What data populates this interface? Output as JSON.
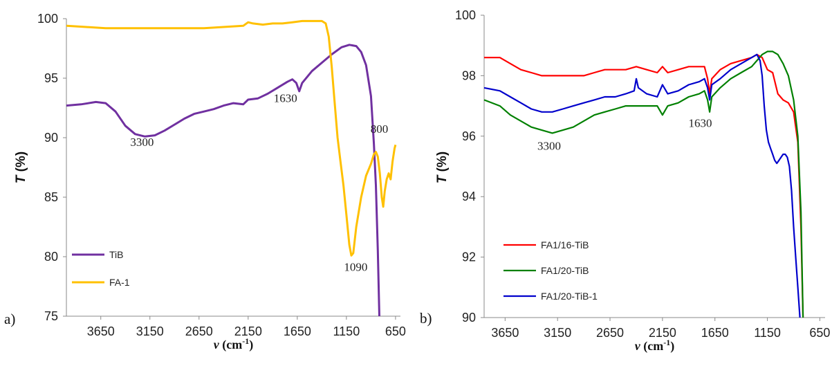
{
  "chart_data": [
    {
      "type": "line",
      "panel_label": "a)",
      "xlabel": "ν (cm⁻¹)",
      "xlabel_var": "ν",
      "xlabel_unit": "(cm",
      "xlabel_sup": "-1",
      "xlabel_close": ")",
      "ylabel_var": "T",
      "ylabel_unit": "(%)",
      "xlim": [
        4000,
        600
      ],
      "ylim": [
        75,
        100
      ],
      "xticks": [
        3650,
        3150,
        2650,
        2150,
        1650,
        1150,
        650
      ],
      "yticks": [
        75,
        80,
        85,
        90,
        95,
        100
      ],
      "grid": false,
      "legend_position": "bottom-left",
      "series": [
        {
          "name": "TiB",
          "color": "#7030A0",
          "points": [
            [
              4000,
              92.7
            ],
            [
              3850,
              92.8
            ],
            [
              3700,
              93.0
            ],
            [
              3600,
              92.9
            ],
            [
              3500,
              92.2
            ],
            [
              3400,
              91.0
            ],
            [
              3300,
              90.3
            ],
            [
              3200,
              90.1
            ],
            [
              3100,
              90.2
            ],
            [
              3000,
              90.6
            ],
            [
              2900,
              91.1
            ],
            [
              2800,
              91.6
            ],
            [
              2700,
              92.0
            ],
            [
              2600,
              92.2
            ],
            [
              2500,
              92.4
            ],
            [
              2400,
              92.7
            ],
            [
              2300,
              92.9
            ],
            [
              2200,
              92.8
            ],
            [
              2150,
              93.2
            ],
            [
              2050,
              93.3
            ],
            [
              1950,
              93.7
            ],
            [
              1850,
              94.2
            ],
            [
              1750,
              94.7
            ],
            [
              1700,
              94.9
            ],
            [
              1660,
              94.6
            ],
            [
              1630,
              93.9
            ],
            [
              1600,
              94.6
            ],
            [
              1500,
              95.6
            ],
            [
              1400,
              96.3
            ],
            [
              1300,
              97.0
            ],
            [
              1200,
              97.6
            ],
            [
              1120,
              97.8
            ],
            [
              1050,
              97.7
            ],
            [
              1000,
              97.2
            ],
            [
              950,
              96.1
            ],
            [
              900,
              93.5
            ],
            [
              870,
              89.5
            ],
            [
              850,
              86.0
            ],
            [
              830,
              80.5
            ],
            [
              815,
              75.0
            ]
          ]
        },
        {
          "name": "FA-1",
          "color": "#FFC000",
          "points": [
            [
              4000,
              99.4
            ],
            [
              3800,
              99.3
            ],
            [
              3600,
              99.2
            ],
            [
              3400,
              99.2
            ],
            [
              3200,
              99.2
            ],
            [
              3000,
              99.2
            ],
            [
              2800,
              99.2
            ],
            [
              2600,
              99.2
            ],
            [
              2400,
              99.3
            ],
            [
              2200,
              99.4
            ],
            [
              2150,
              99.7
            ],
            [
              2100,
              99.6
            ],
            [
              2000,
              99.5
            ],
            [
              1900,
              99.6
            ],
            [
              1800,
              99.6
            ],
            [
              1700,
              99.7
            ],
            [
              1600,
              99.8
            ],
            [
              1500,
              99.8
            ],
            [
              1400,
              99.8
            ],
            [
              1360,
              99.6
            ],
            [
              1330,
              98.5
            ],
            [
              1300,
              96.0
            ],
            [
              1270,
              93.0
            ],
            [
              1240,
              90.0
            ],
            [
              1210,
              88.0
            ],
            [
              1180,
              86.0
            ],
            [
              1150,
              83.5
            ],
            [
              1120,
              81.0
            ],
            [
              1100,
              80.1
            ],
            [
              1080,
              80.3
            ],
            [
              1050,
              82.5
            ],
            [
              1000,
              85.0
            ],
            [
              950,
              86.8
            ],
            [
              900,
              87.8
            ],
            [
              870,
              88.6
            ],
            [
              850,
              88.8
            ],
            [
              830,
              88.4
            ],
            [
              810,
              87.0
            ],
            [
              790,
              85.0
            ],
            [
              775,
              84.2
            ],
            [
              760,
              85.5
            ],
            [
              740,
              86.5
            ],
            [
              720,
              87.0
            ],
            [
              700,
              86.5
            ],
            [
              680,
              88.0
            ],
            [
              660,
              89.1
            ],
            [
              650,
              89.4
            ]
          ]
        }
      ],
      "annotations": [
        {
          "text": "3300",
          "x": 3230,
          "y": 89.3
        },
        {
          "text": "1630",
          "x": 1770,
          "y": 93.0
        },
        {
          "text": "1090",
          "x": 1055,
          "y": 78.8
        },
        {
          "text": "800",
          "x": 815,
          "y": 90.4
        }
      ]
    },
    {
      "type": "line",
      "panel_label": "b)",
      "xlabel": "ν (cm⁻¹)",
      "xlabel_var": "ν",
      "xlabel_unit": "(cm",
      "xlabel_sup": "-1",
      "xlabel_close": ")",
      "ylabel_var": "T",
      "ylabel_unit": "(%)",
      "xlim": [
        3850,
        600
      ],
      "ylim": [
        90,
        100
      ],
      "xticks": [
        3650,
        3150,
        2650,
        2150,
        1650,
        1150,
        650
      ],
      "yticks": [
        90,
        92,
        94,
        96,
        98,
        100
      ],
      "grid": false,
      "legend_position": "bottom-left",
      "series": [
        {
          "name": "FA1/16-TiB",
          "color": "#FF0000",
          "points": [
            [
              3850,
              98.6
            ],
            [
              3700,
              98.6
            ],
            [
              3600,
              98.4
            ],
            [
              3500,
              98.2
            ],
            [
              3400,
              98.1
            ],
            [
              3300,
              98.0
            ],
            [
              3200,
              98.0
            ],
            [
              3100,
              98.0
            ],
            [
              3000,
              98.0
            ],
            [
              2900,
              98.0
            ],
            [
              2800,
              98.1
            ],
            [
              2700,
              98.2
            ],
            [
              2600,
              98.2
            ],
            [
              2500,
              98.2
            ],
            [
              2400,
              98.3
            ],
            [
              2300,
              98.2
            ],
            [
              2200,
              98.1
            ],
            [
              2150,
              98.3
            ],
            [
              2100,
              98.1
            ],
            [
              2000,
              98.2
            ],
            [
              1900,
              98.3
            ],
            [
              1800,
              98.3
            ],
            [
              1750,
              98.3
            ],
            [
              1720,
              97.9
            ],
            [
              1700,
              97.4
            ],
            [
              1680,
              97.9
            ],
            [
              1600,
              98.2
            ],
            [
              1500,
              98.4
            ],
            [
              1400,
              98.5
            ],
            [
              1300,
              98.6
            ],
            [
              1250,
              98.7
            ],
            [
              1200,
              98.6
            ],
            [
              1150,
              98.2
            ],
            [
              1100,
              98.1
            ],
            [
              1050,
              97.4
            ],
            [
              1000,
              97.2
            ],
            [
              950,
              97.1
            ],
            [
              900,
              96.8
            ],
            [
              860,
              95.8
            ],
            [
              830,
              93.0
            ],
            [
              810,
              90.0
            ]
          ]
        },
        {
          "name": "FA1/20-TiB",
          "color": "#008000",
          "points": [
            [
              3850,
              97.2
            ],
            [
              3700,
              97.0
            ],
            [
              3600,
              96.7
            ],
            [
              3500,
              96.5
            ],
            [
              3400,
              96.3
            ],
            [
              3300,
              96.2
            ],
            [
              3200,
              96.1
            ],
            [
              3100,
              96.2
            ],
            [
              3000,
              96.3
            ],
            [
              2900,
              96.5
            ],
            [
              2800,
              96.7
            ],
            [
              2700,
              96.8
            ],
            [
              2600,
              96.9
            ],
            [
              2500,
              97.0
            ],
            [
              2400,
              97.0
            ],
            [
              2300,
              97.0
            ],
            [
              2200,
              97.0
            ],
            [
              2150,
              96.7
            ],
            [
              2100,
              97.0
            ],
            [
              2000,
              97.1
            ],
            [
              1900,
              97.3
            ],
            [
              1800,
              97.4
            ],
            [
              1750,
              97.5
            ],
            [
              1720,
              97.2
            ],
            [
              1700,
              96.8
            ],
            [
              1680,
              97.3
            ],
            [
              1600,
              97.6
            ],
            [
              1500,
              97.9
            ],
            [
              1400,
              98.1
            ],
            [
              1300,
              98.3
            ],
            [
              1250,
              98.5
            ],
            [
              1200,
              98.7
            ],
            [
              1150,
              98.8
            ],
            [
              1100,
              98.8
            ],
            [
              1050,
              98.7
            ],
            [
              1000,
              98.4
            ],
            [
              950,
              98.0
            ],
            [
              900,
              97.2
            ],
            [
              860,
              96.0
            ],
            [
              830,
              93.5
            ],
            [
              810,
              90.0
            ]
          ]
        },
        {
          "name": "FA1/20-TiB-1",
          "color": "#0000CC",
          "points": [
            [
              3850,
              97.6
            ],
            [
              3700,
              97.5
            ],
            [
              3600,
              97.3
            ],
            [
              3500,
              97.1
            ],
            [
              3400,
              96.9
            ],
            [
              3300,
              96.8
            ],
            [
              3200,
              96.8
            ],
            [
              3100,
              96.9
            ],
            [
              3000,
              97.0
            ],
            [
              2900,
              97.1
            ],
            [
              2800,
              97.2
            ],
            [
              2700,
              97.3
            ],
            [
              2600,
              97.3
            ],
            [
              2500,
              97.4
            ],
            [
              2420,
              97.5
            ],
            [
              2400,
              97.9
            ],
            [
              2380,
              97.6
            ],
            [
              2300,
              97.4
            ],
            [
              2200,
              97.3
            ],
            [
              2150,
              97.7
            ],
            [
              2100,
              97.4
            ],
            [
              2000,
              97.5
            ],
            [
              1900,
              97.7
            ],
            [
              1800,
              97.8
            ],
            [
              1750,
              97.9
            ],
            [
              1720,
              97.6
            ],
            [
              1700,
              97.2
            ],
            [
              1680,
              97.7
            ],
            [
              1600,
              97.9
            ],
            [
              1500,
              98.2
            ],
            [
              1400,
              98.4
            ],
            [
              1300,
              98.6
            ],
            [
              1250,
              98.7
            ],
            [
              1220,
              98.5
            ],
            [
              1200,
              98.0
            ],
            [
              1180,
              97.0
            ],
            [
              1160,
              96.2
            ],
            [
              1140,
              95.8
            ],
            [
              1120,
              95.6
            ],
            [
              1100,
              95.4
            ],
            [
              1080,
              95.2
            ],
            [
              1060,
              95.1
            ],
            [
              1040,
              95.2
            ],
            [
              1020,
              95.3
            ],
            [
              1000,
              95.4
            ],
            [
              980,
              95.4
            ],
            [
              960,
              95.3
            ],
            [
              940,
              95.0
            ],
            [
              920,
              94.2
            ],
            [
              900,
              93.0
            ],
            [
              880,
              92.0
            ],
            [
              860,
              91.0
            ],
            [
              840,
              90.0
            ]
          ]
        }
      ],
      "annotations": [
        {
          "text": "3300",
          "x": 3230,
          "y": 95.55
        },
        {
          "text": "1630",
          "x": 1790,
          "y": 96.3
        }
      ]
    }
  ]
}
